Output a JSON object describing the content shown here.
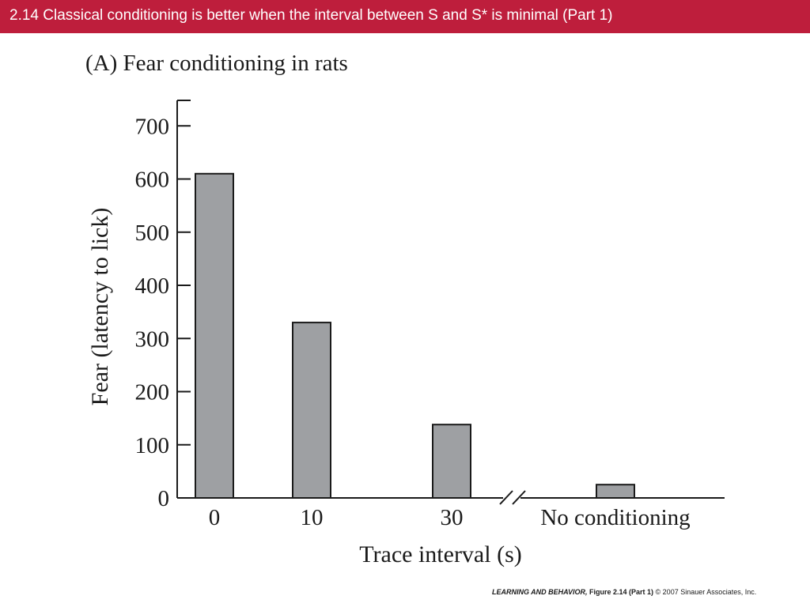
{
  "slide": {
    "title": "2.14  Classical conditioning is better when the interval between S and S* is minimal (Part 1)"
  },
  "figure": {
    "heading": "(A)  Fear conditioning in rats"
  },
  "footer": {
    "book": "LEARNING AND BEHAVIOR,",
    "figure": " Figure 2.14 (Part 1)",
    "copyright": "  © 2007 Sinauer Associates, Inc."
  },
  "colors": {
    "title_bar": "#be1e3c",
    "bar_fill": "#9ea0a3",
    "ink": "#1a1a1a"
  },
  "chart_data": {
    "type": "bar",
    "categories": [
      "0",
      "10",
      "30",
      "No conditioning"
    ],
    "x": [
      0,
      10,
      30,
      null
    ],
    "values": [
      610,
      330,
      138,
      25
    ],
    "xlabel": "Trace interval (s)",
    "ylabel": "Fear (latency to lick)",
    "ylim": [
      0,
      750
    ],
    "yticks": [
      0,
      100,
      200,
      300,
      400,
      500,
      600,
      700
    ],
    "axis_break": "between 30 and No conditioning",
    "grid": false,
    "legend": "none"
  }
}
